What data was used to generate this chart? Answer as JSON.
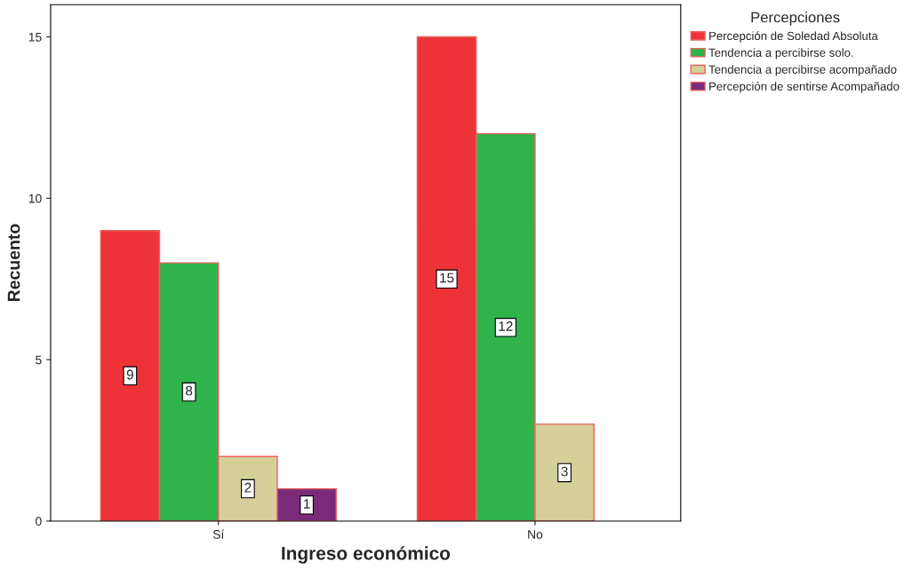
{
  "chart_data": {
    "type": "bar",
    "xlabel": "Ingreso económico",
    "ylabel": "Recuento",
    "legend_title": "Percepciones",
    "categories": [
      "Sí",
      "No"
    ],
    "series": [
      {
        "name": "Percepción de Soledad Absoluta",
        "color": "#ee3338",
        "values": [
          9,
          15
        ]
      },
      {
        "name": "Tendencia a percibirse solo.",
        "color": "#2fb34a",
        "values": [
          8,
          12
        ]
      },
      {
        "name": "Tendencia a percibirse acompañado",
        "color": "#d5cf9a",
        "values": [
          2,
          3
        ]
      },
      {
        "name": "Percepción de sentirse Acompañado",
        "color": "#7b2a7a",
        "values": [
          1,
          null
        ]
      }
    ],
    "ylim": [
      0,
      16
    ],
    "yticks": [
      0,
      5,
      10,
      15
    ],
    "data_labels": true,
    "grid": false,
    "legend": "top right"
  }
}
